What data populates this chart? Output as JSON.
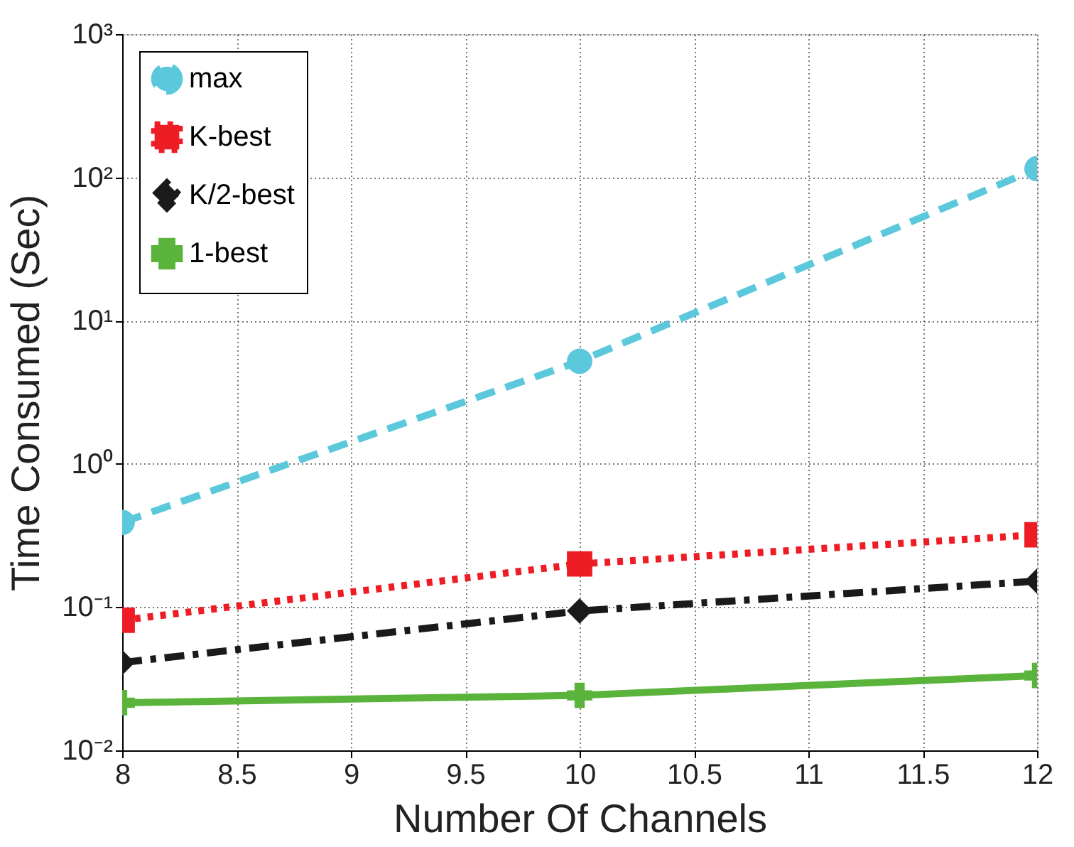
{
  "chart_data": {
    "type": "line",
    "xlabel": "Number Of Channels",
    "ylabel": "Time Consumed (Sec)",
    "x": [
      8,
      10,
      12
    ],
    "series": [
      {
        "name": "max",
        "color": "#5bc8dc",
        "values": [
          0.39,
          5.2,
          115
        ],
        "marker": "circle",
        "line_style": "dashed"
      },
      {
        "name": "K-best",
        "color": "#ee1c24",
        "values": [
          0.081,
          0.2,
          0.32
        ],
        "marker": "square",
        "line_style": "dotted"
      },
      {
        "name": "K/2-best",
        "color": "#1a1a1a",
        "values": [
          0.041,
          0.094,
          0.152
        ],
        "marker": "diamond",
        "line_style": "dashdot"
      },
      {
        "name": "1-best",
        "color": "#5ab43c",
        "values": [
          0.0215,
          0.0242,
          0.0333
        ],
        "marker": "cross",
        "line_style": "solid"
      }
    ],
    "xlim": [
      8,
      12
    ],
    "xticks": [
      8,
      8.5,
      9,
      9.5,
      10,
      10.5,
      11,
      11.5,
      12
    ],
    "ylim": [
      0.01,
      1000
    ],
    "yticks": [
      {
        "value": 0.01,
        "label": "10⁻²"
      },
      {
        "value": 0.1,
        "label": "10⁻¹"
      },
      {
        "value": 1,
        "label": "10⁰"
      },
      {
        "value": 10,
        "label": "10¹"
      },
      {
        "value": 100,
        "label": "10²"
      },
      {
        "value": 1000,
        "label": "10³"
      }
    ],
    "log": true,
    "grid": true,
    "legend": "top left"
  }
}
